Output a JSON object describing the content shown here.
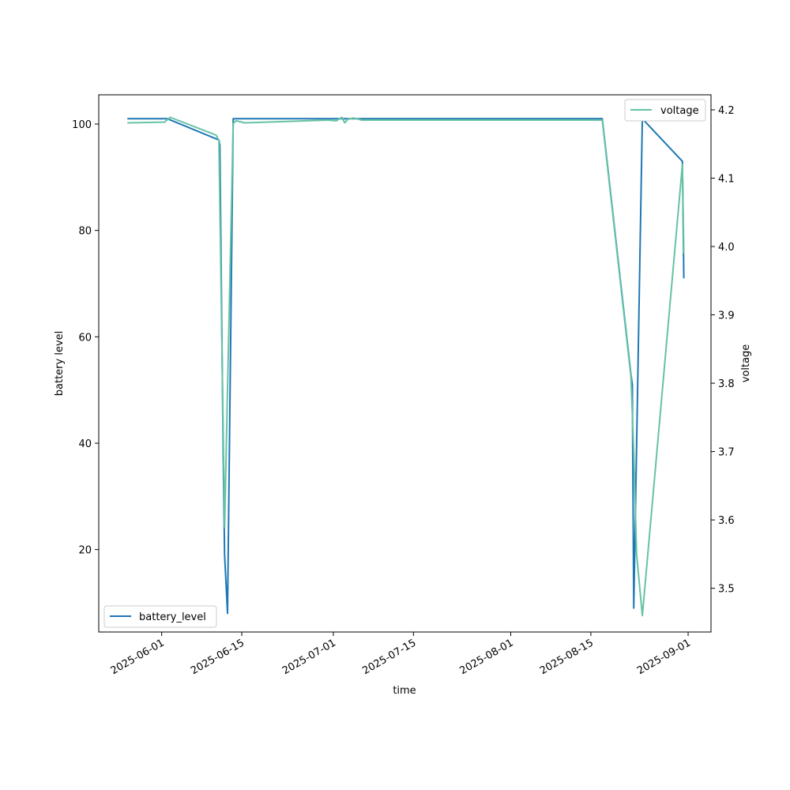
{
  "chart_data": {
    "type": "line",
    "xlabel": "time",
    "x_ticks": [
      "2025-06-01",
      "2025-06-15",
      "2025-07-01",
      "2025-07-15",
      "2025-08-01",
      "2025-08-15",
      "2025-09-01"
    ],
    "xlim": [
      "2025-05-21T00:00:00",
      "2025-09-05T00:00:00"
    ],
    "left_axis": {
      "label": "battery level",
      "ylim": [
        4.5,
        105.5
      ],
      "ticks": [
        20,
        40,
        60,
        80,
        100
      ]
    },
    "right_axis": {
      "label": "voltage",
      "ylim": [
        3.436,
        4.222
      ],
      "ticks": [
        3.5,
        3.6,
        3.7,
        3.8,
        3.9,
        4.0,
        4.1,
        4.2
      ]
    },
    "series": [
      {
        "name": "battery_level",
        "axis": "left",
        "color": "#1f77b4",
        "points": [
          [
            "2025-05-26T00:00:00",
            101
          ],
          [
            "2025-06-02T00:00:00",
            101
          ],
          [
            "2025-06-11T00:00:00",
            97
          ],
          [
            "2025-06-11T04:00:00",
            96
          ],
          [
            "2025-06-11T18:00:00",
            38
          ],
          [
            "2025-06-12T00:00:00",
            19
          ],
          [
            "2025-06-12T12:00:00",
            8
          ],
          [
            "2025-06-13T12:00:00",
            101
          ],
          [
            "2025-07-03T00:00:00",
            101
          ],
          [
            "2025-07-03T12:00:00",
            101
          ],
          [
            "2025-07-04T00:00:00",
            101
          ],
          [
            "2025-08-17T00:00:00",
            101
          ],
          [
            "2025-08-22T00:00:00",
            53
          ],
          [
            "2025-08-22T06:00:00",
            51
          ],
          [
            "2025-08-22T12:00:00",
            9
          ],
          [
            "2025-08-24T00:00:00",
            101
          ],
          [
            "2025-08-31T00:00:00",
            93
          ],
          [
            "2025-08-31T06:00:00",
            71
          ]
        ]
      },
      {
        "name": "voltage",
        "axis": "right",
        "color": "#66c2a5",
        "points": [
          [
            "2025-05-26T00:00:00",
            4.181
          ],
          [
            "2025-06-01T12:00:00",
            4.182
          ],
          [
            "2025-06-02T12:00:00",
            4.189
          ],
          [
            "2025-06-10T12:00:00",
            4.163
          ],
          [
            "2025-06-11T00:00:00",
            4.155
          ],
          [
            "2025-06-12T00:00:00",
            3.59
          ],
          [
            "2025-06-13T12:00:00",
            4.18
          ],
          [
            "2025-06-14T00:00:00",
            4.184
          ],
          [
            "2025-06-15T12:00:00",
            4.181
          ],
          [
            "2025-06-30T00:00:00",
            4.185
          ],
          [
            "2025-07-01T12:00:00",
            4.184
          ],
          [
            "2025-07-02T12:00:00",
            4.189
          ],
          [
            "2025-07-03T00:00:00",
            4.181
          ],
          [
            "2025-07-03T12:00:00",
            4.186
          ],
          [
            "2025-07-04T12:00:00",
            4.188
          ],
          [
            "2025-07-06T00:00:00",
            4.185
          ],
          [
            "2025-08-17T00:00:00",
            4.185
          ],
          [
            "2025-08-22T00:00:00",
            3.81
          ],
          [
            "2025-08-22T12:00:00",
            3.7
          ],
          [
            "2025-08-23T00:00:00",
            3.55
          ],
          [
            "2025-08-24T00:00:00",
            3.46
          ],
          [
            "2025-08-31T00:00:00",
            4.12
          ],
          [
            "2025-08-31T06:00:00",
            3.99
          ]
        ]
      }
    ],
    "legends": [
      {
        "series": "battery_level",
        "placement": "lower-left"
      },
      {
        "series": "voltage",
        "placement": "upper-right"
      }
    ],
    "grid": false
  }
}
